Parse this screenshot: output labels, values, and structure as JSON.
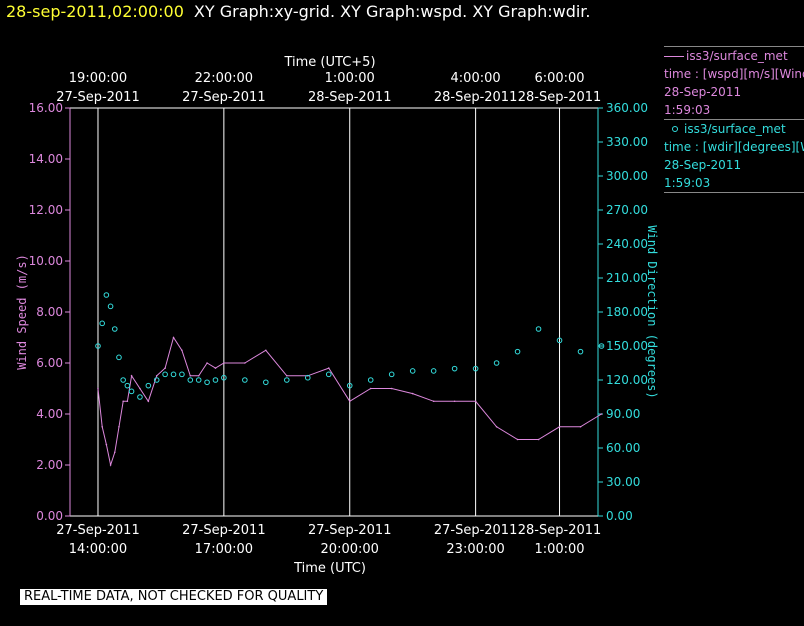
{
  "header": {
    "timestamp": "28-sep-2011,02:00:00",
    "titles": "XY Graph:xy-grid.  XY Graph:wspd.  XY Graph:wdir."
  },
  "legend": {
    "series1": {
      "name": "iss3/surface_met",
      "desc": "time : [wspd][m/s][Wind",
      "date": "28-Sep-2011",
      "time": "1:59:03",
      "color": "#dd88dd"
    },
    "series2": {
      "name": "iss3/surface_met",
      "desc": "time : [wdir][degrees][W",
      "date": "28-Sep-2011",
      "time": "1:59:03",
      "color": "#33dddd"
    }
  },
  "note": "REAL-TIME DATA, NOT CHECKED FOR QUALITY",
  "chart_data": {
    "type": "line",
    "x_top_label": "Time (UTC+5)",
    "x_bottom_label": "Time (UTC)",
    "ylabel_left": "Wind Speed (m/s)",
    "ylabel_right": "Wind Direction (degrees)",
    "x_range_hours_utc": [
      "27-Sep-2011 13:20",
      "28-Sep-2011 01:55"
    ],
    "ylim_left": [
      0,
      16
    ],
    "ylim_right": [
      0,
      360
    ],
    "left_ticks": [
      "0.00",
      "2.00",
      "4.00",
      "6.00",
      "8.00",
      "10.00",
      "12.00",
      "14.00",
      "16.00"
    ],
    "right_ticks": [
      "0.00",
      "30.00",
      "60.00",
      "90.00",
      "120.00",
      "150.00",
      "180.00",
      "210.00",
      "240.00",
      "270.00",
      "300.00",
      "330.00",
      "360.00"
    ],
    "bottom_ticks": [
      {
        "date": "27-Sep-2011",
        "time": "14:00:00",
        "hour": 14
      },
      {
        "date": "27-Sep-2011",
        "time": "17:00:00",
        "hour": 17
      },
      {
        "date": "27-Sep-2011",
        "time": "20:00:00",
        "hour": 20
      },
      {
        "date": "27-Sep-2011",
        "time": "23:00:00",
        "hour": 23
      },
      {
        "date": "28-Sep-2011",
        "time": "1:00:00",
        "hour": 25
      }
    ],
    "top_ticks": [
      {
        "time": "19:00:00",
        "date": "27-Sep-2011",
        "hour": 14
      },
      {
        "time": "22:00:00",
        "date": "27-Sep-2011",
        "hour": 17
      },
      {
        "time": "1:00:00",
        "date": "28-Sep-2011",
        "hour": 20
      },
      {
        "time": "4:00:00",
        "date": "28-Sep-2011",
        "hour": 23
      },
      {
        "time": "6:00:00",
        "date": "28-Sep-2011",
        "hour": 25
      }
    ],
    "grid": true,
    "series": [
      {
        "name": "iss3/surface_met wspd",
        "axis": "left",
        "color": "#dd88dd",
        "style": "line",
        "x_hours": [
          14.0,
          14.1,
          14.2,
          14.3,
          14.4,
          14.5,
          14.6,
          14.7,
          14.8,
          15.0,
          15.2,
          15.4,
          15.6,
          15.8,
          16.0,
          16.2,
          16.4,
          16.6,
          16.8,
          17.0,
          17.5,
          18.0,
          18.5,
          19.0,
          19.5,
          20.0,
          20.5,
          21.0,
          21.5,
          22.0,
          22.5,
          23.0,
          23.5,
          24.0,
          24.5,
          25.0,
          25.5,
          26.0
        ],
        "values": [
          5.0,
          3.5,
          2.8,
          2.0,
          2.5,
          3.5,
          4.5,
          4.5,
          5.5,
          5.0,
          4.5,
          5.5,
          5.8,
          7.0,
          6.5,
          5.5,
          5.5,
          6.0,
          5.8,
          6.0,
          6.0,
          6.5,
          5.5,
          5.5,
          5.8,
          4.5,
          5.0,
          5.0,
          4.8,
          4.5,
          4.5,
          4.5,
          3.5,
          3.0,
          3.0,
          3.5,
          3.5,
          4.0
        ]
      },
      {
        "name": "iss3/surface_met wdir",
        "axis": "right",
        "color": "#33dddd",
        "style": "markers",
        "x_hours": [
          14.0,
          14.1,
          14.2,
          14.3,
          14.4,
          14.5,
          14.6,
          14.7,
          14.8,
          15.0,
          15.2,
          15.4,
          15.6,
          15.8,
          16.0,
          16.2,
          16.4,
          16.6,
          16.8,
          17.0,
          17.5,
          18.0,
          18.5,
          19.0,
          19.5,
          20.0,
          20.5,
          21.0,
          21.5,
          22.0,
          22.5,
          23.0,
          23.5,
          24.0,
          24.5,
          25.0,
          25.5,
          26.0
        ],
        "values": [
          150,
          170,
          195,
          185,
          165,
          140,
          120,
          115,
          110,
          105,
          115,
          120,
          125,
          125,
          125,
          120,
          120,
          118,
          120,
          122,
          120,
          118,
          120,
          122,
          125,
          115,
          120,
          125,
          128,
          128,
          130,
          130,
          135,
          145,
          165,
          155,
          145,
          150
        ]
      }
    ]
  }
}
